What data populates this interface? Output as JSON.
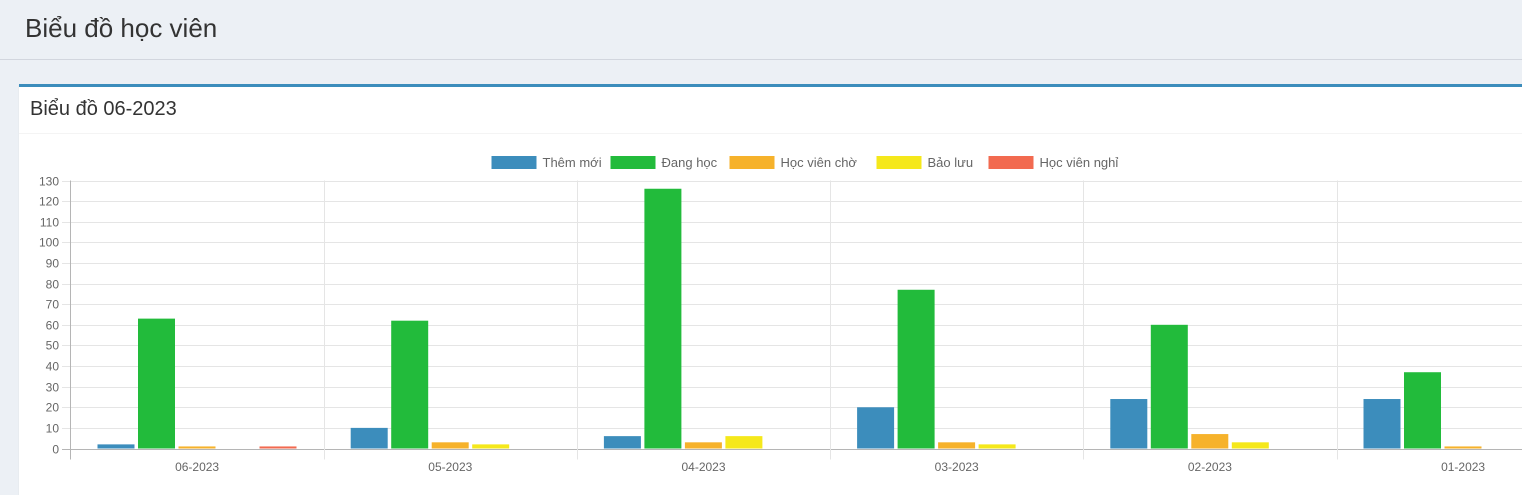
{
  "page": {
    "title": "Biểu đồ học viên"
  },
  "box": {
    "title": "Biểu đồ 06-2023"
  },
  "colors": {
    "header_bg": "#ecf0f5",
    "box_border_top": "#3c8dbc",
    "grid": "#e5e5e5",
    "axis_text": "#666666"
  },
  "chart_data": {
    "type": "bar",
    "categories": [
      "06-2023",
      "05-2023",
      "04-2023",
      "03-2023",
      "02-2023",
      "01-2023"
    ],
    "series": [
      {
        "name": "Thêm mới",
        "color": "#3c8dbc",
        "values": [
          2,
          10,
          6,
          20,
          24,
          24
        ]
      },
      {
        "name": "Đang học",
        "color": "#22bb3b",
        "values": [
          63,
          62,
          126,
          77,
          60,
          37
        ]
      },
      {
        "name": "Học viên chờ",
        "color": "#f6b22b",
        "values": [
          1,
          3,
          3,
          3,
          7,
          1
        ]
      },
      {
        "name": "Bảo lưu",
        "color": "#f5e81b",
        "values": [
          0,
          2,
          6,
          2,
          3,
          0
        ]
      },
      {
        "name": "Học viên nghỉ",
        "color": "#f26a50",
        "values": [
          1,
          0,
          0,
          0,
          0,
          0
        ]
      }
    ],
    "ylim": [
      0,
      130
    ],
    "yticks": [
      0,
      10,
      20,
      30,
      40,
      50,
      60,
      70,
      80,
      90,
      100,
      110,
      120,
      130
    ],
    "legend_position": "top-center",
    "grid": true,
    "title": "",
    "xlabel": "",
    "ylabel": ""
  }
}
